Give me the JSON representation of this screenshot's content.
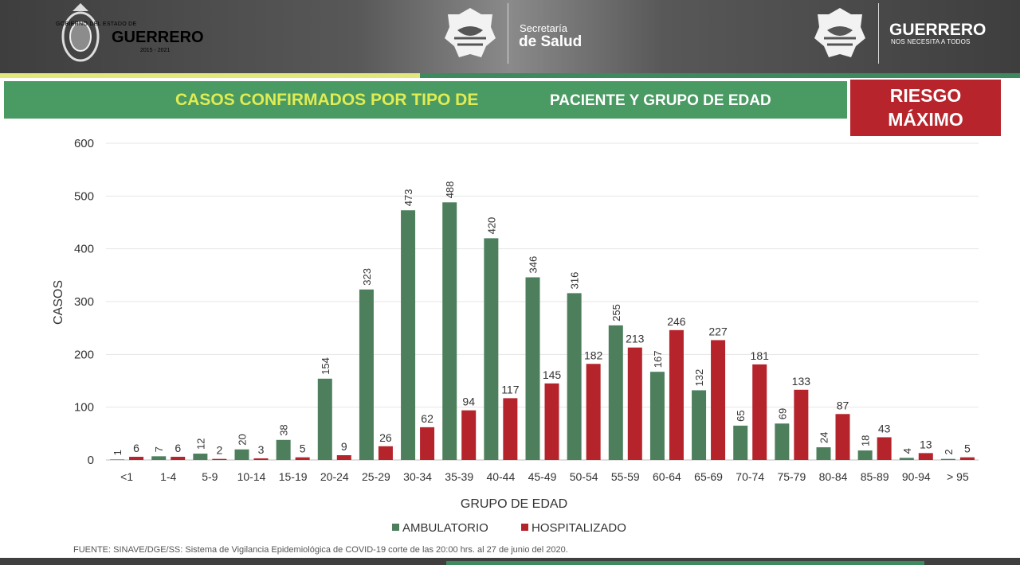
{
  "header": {
    "gov_line1": "GOBIERNO DEL ESTADO DE",
    "gov_line2": "GUERRERO",
    "gov_years": "2015 - 2021",
    "secretaria_line1": "Secretaría",
    "secretaria_line2": "de Salud",
    "guerrero_line1": "GUERRERO",
    "guerrero_line2": "NOS NECESITA A TODOS"
  },
  "banner": {
    "title_part1": "CASOS CONFIRMADOS POR TIPO DE",
    "title_part2": "PACIENTE Y GRUPO DE EDAD",
    "risk_line1": "RIESGO",
    "risk_line2": "MÁXIMO"
  },
  "colors": {
    "ambulatorio": "#4d7f5d",
    "hospitalizado": "#b5232b",
    "title_bar": "#4a9a63",
    "risk_box": "#b7242c"
  },
  "chart_data": {
    "type": "bar",
    "categories": [
      "<1",
      "1-4",
      "5-9",
      "10-14",
      "15-19",
      "20-24",
      "25-29",
      "30-34",
      "35-39",
      "40-44",
      "45-49",
      "50-54",
      "55-59",
      "60-64",
      "65-69",
      "70-74",
      "75-79",
      "80-84",
      "85-89",
      "90-94",
      "> 95"
    ],
    "series": [
      {
        "name": "AMBULATORIO",
        "values": [
          1,
          7,
          12,
          20,
          38,
          154,
          323,
          473,
          488,
          420,
          346,
          316,
          255,
          167,
          132,
          65,
          69,
          24,
          18,
          4,
          2
        ]
      },
      {
        "name": "HOSPITALIZADO",
        "values": [
          6,
          6,
          2,
          3,
          5,
          9,
          26,
          62,
          94,
          117,
          145,
          182,
          213,
          246,
          227,
          181,
          133,
          87,
          43,
          13,
          5
        ]
      }
    ],
    "xlabel": "GRUPO DE EDAD",
    "ylabel": "CASOS",
    "ylim": [
      0,
      600
    ],
    "yticks": [
      0,
      100,
      200,
      300,
      400,
      500,
      600
    ],
    "grid": true,
    "legend": "bottom-center",
    "ambulatorio_labels_rotated": true
  },
  "source": "FUENTE: SINAVE/DGE/SS: Sistema de Vigilancia Epidemiológica de COVID-19 corte de las 20:00 hrs. al 27 de junio del 2020."
}
